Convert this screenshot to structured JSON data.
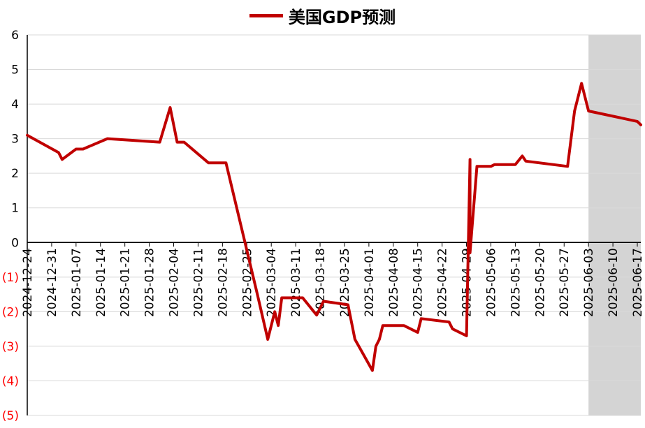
{
  "chart_data": {
    "type": "line",
    "ylim": [
      -5,
      6
    ],
    "yticks": [
      6,
      5,
      4,
      3,
      2,
      1,
      0,
      -1,
      -2,
      -3,
      -4,
      -5
    ],
    "ytick_labels": [
      "6",
      "5",
      "4",
      "3",
      "2",
      "1",
      "0",
      "(1)",
      "(2)",
      "(3)",
      "(4)",
      "(5)"
    ],
    "xlim": [
      "2024-12-24",
      "2025-06-18"
    ],
    "xticks": [
      "2024-12-24",
      "2024-12-31",
      "2025-01-07",
      "2025-01-14",
      "2025-01-21",
      "2025-01-28",
      "2025-02-04",
      "2025-02-11",
      "2025-02-18",
      "2025-02-25",
      "2025-03-04",
      "2025-03-11",
      "2025-03-18",
      "2025-03-25",
      "2025-04-01",
      "2025-04-08",
      "2025-04-15",
      "2025-04-22",
      "2025-04-29",
      "2025-05-06",
      "2025-05-13",
      "2025-05-20",
      "2025-05-27",
      "2025-06-03",
      "2025-06-10",
      "2025-06-17"
    ],
    "grid": true,
    "legend_position": "top",
    "shaded_range": {
      "start": "2025-06-03",
      "end": "2025-06-18",
      "color": "#D4D4D4"
    },
    "series": [
      {
        "name": "美国GDP预测",
        "color": "#C00000",
        "points": [
          {
            "x": "2024-12-24",
            "y": 3.1
          },
          {
            "x": "2025-01-02",
            "y": 2.6
          },
          {
            "x": "2025-01-03",
            "y": 2.4
          },
          {
            "x": "2025-01-07",
            "y": 2.7
          },
          {
            "x": "2025-01-09",
            "y": 2.7
          },
          {
            "x": "2025-01-16",
            "y": 3.0
          },
          {
            "x": "2025-01-31",
            "y": 2.9
          },
          {
            "x": "2025-02-03",
            "y": 3.9
          },
          {
            "x": "2025-02-05",
            "y": 2.9
          },
          {
            "x": "2025-02-07",
            "y": 2.9
          },
          {
            "x": "2025-02-14",
            "y": 2.3
          },
          {
            "x": "2025-02-19",
            "y": 2.3
          },
          {
            "x": "2025-02-28",
            "y": -1.5
          },
          {
            "x": "2025-03-03",
            "y": -2.8
          },
          {
            "x": "2025-03-05",
            "y": -2.0
          },
          {
            "x": "2025-03-06",
            "y": -2.4
          },
          {
            "x": "2025-03-07",
            "y": -1.6
          },
          {
            "x": "2025-03-13",
            "y": -1.6
          },
          {
            "x": "2025-03-17",
            "y": -2.1
          },
          {
            "x": "2025-03-19",
            "y": -1.7
          },
          {
            "x": "2025-03-26",
            "y": -1.8
          },
          {
            "x": "2025-03-28",
            "y": -2.8
          },
          {
            "x": "2025-04-02",
            "y": -3.7
          },
          {
            "x": "2025-04-03",
            "y": -3.0
          },
          {
            "x": "2025-04-04",
            "y": -2.8
          },
          {
            "x": "2025-04-05",
            "y": -2.4
          },
          {
            "x": "2025-04-09",
            "y": -2.4
          },
          {
            "x": "2025-04-11",
            "y": -2.4
          },
          {
            "x": "2025-04-15",
            "y": -2.6
          },
          {
            "x": "2025-04-16",
            "y": -2.2
          },
          {
            "x": "2025-04-24",
            "y": -2.3
          },
          {
            "x": "2025-04-25",
            "y": -2.5
          },
          {
            "x": "2025-04-29",
            "y": -2.7
          },
          {
            "x": "2025-04-30",
            "y": 2.4
          },
          {
            "x": "2025-04-30",
            "y": -0.3
          },
          {
            "x": "2025-05-02",
            "y": 2.2
          },
          {
            "x": "2025-05-05",
            "y": 2.2
          },
          {
            "x": "2025-05-06",
            "y": 2.2
          },
          {
            "x": "2025-05-07",
            "y": 2.25
          },
          {
            "x": "2025-05-08",
            "y": 2.25
          },
          {
            "x": "2025-05-13",
            "y": 2.25
          },
          {
            "x": "2025-05-15",
            "y": 2.5
          },
          {
            "x": "2025-05-16",
            "y": 2.35
          },
          {
            "x": "2025-05-28",
            "y": 2.2
          },
          {
            "x": "2025-05-30",
            "y": 3.8
          },
          {
            "x": "2025-06-01",
            "y": 4.6
          },
          {
            "x": "2025-06-03",
            "y": 3.8
          },
          {
            "x": "2025-06-17",
            "y": 3.5
          },
          {
            "x": "2025-06-18",
            "y": 3.4
          }
        ]
      }
    ]
  }
}
